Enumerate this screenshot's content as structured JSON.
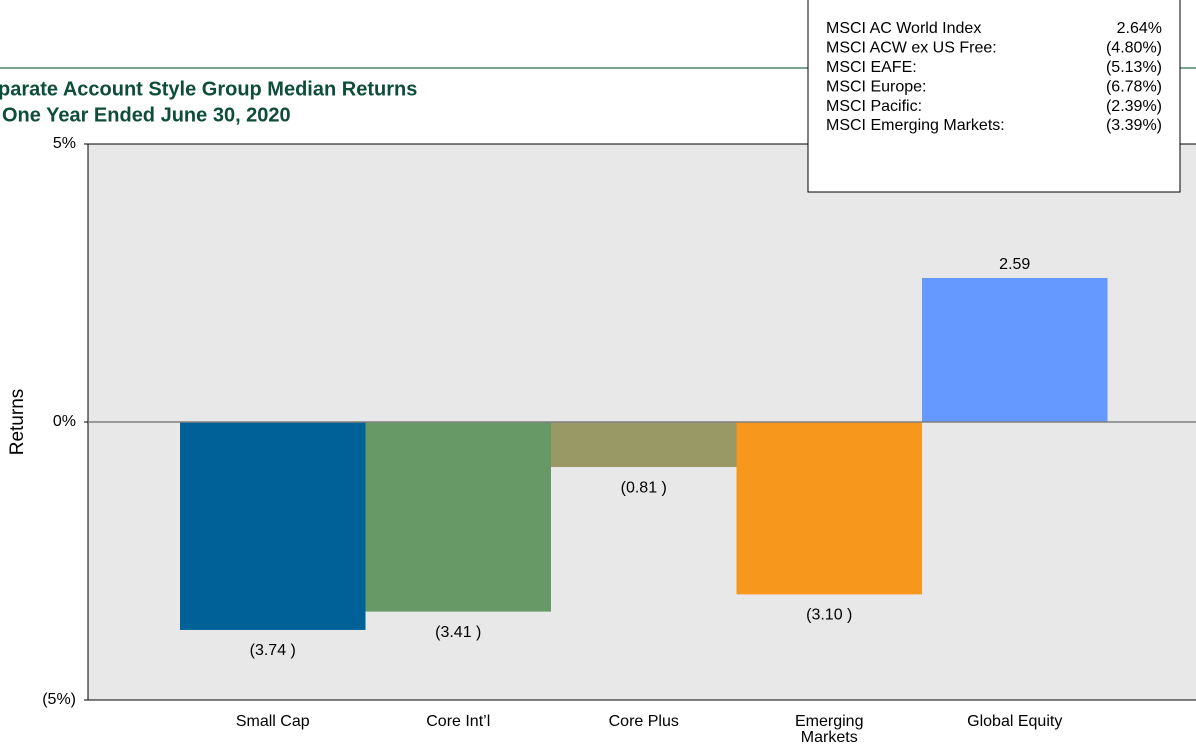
{
  "chart_data": {
    "type": "bar",
    "title": "parate Account Style Group Median Returns",
    "subtitle": "One Year Ended June 30, 2020",
    "y_label": "Returns",
    "categories": [
      "Small Cap",
      "Core Int’l",
      "Core Plus",
      "Emerging Markets",
      "Global Equity"
    ],
    "values": [
      -3.74,
      -3.41,
      -0.81,
      -3.1,
      2.59
    ],
    "value_labels": [
      "(3.74 )",
      "(3.41 )",
      "(0.81 )",
      "(3.10 )",
      "2.59"
    ],
    "colors": [
      "#006098",
      "#669966",
      "#999966",
      "#f7981d",
      "#6699ff"
    ],
    "ylim": [
      -5,
      5
    ],
    "yticks": [
      {
        "value": -5,
        "label": "(5%)"
      },
      {
        "value": 0,
        "label": "0%"
      },
      {
        "value": 5,
        "label": "5%"
      }
    ],
    "index_returns": [
      {
        "name": "MSCI AC World Index",
        "value": 2.64,
        "label": "2.64%"
      },
      {
        "name": "MSCI ACW ex US Free:",
        "value": -4.8,
        "label": "(4.80%)"
      },
      {
        "name": "MSCI EAFE:",
        "value": -5.13,
        "label": "(5.13%)"
      },
      {
        "name": "MSCI Europe:",
        "value": -6.78,
        "label": "(6.78%)"
      },
      {
        "name": "MSCI Pacific:",
        "value": -2.39,
        "label": "(2.39%)"
      },
      {
        "name": "MSCI Emerging Markets:",
        "value": -3.39,
        "label": "(3.39%)"
      }
    ]
  }
}
